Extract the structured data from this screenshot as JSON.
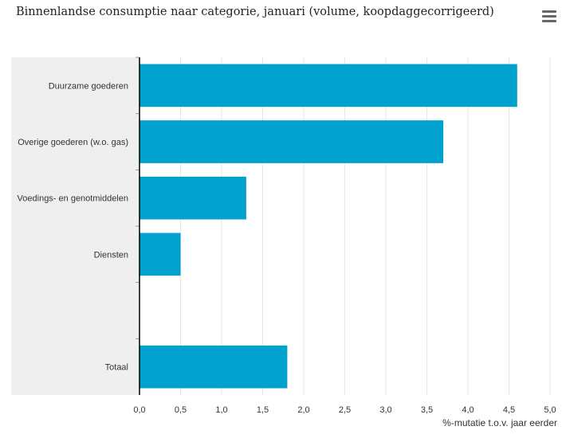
{
  "title": "Binnenlandse consumptie naar categorie, januari (volume, koopdaggecorrigeerd)",
  "menu": {
    "icon": "hamburger-menu-icon"
  },
  "colors": {
    "bar": "#00a1cd",
    "category_band": "#efefef",
    "gridline": "#e6e6e6",
    "axis": "#000000"
  },
  "chart_data": {
    "type": "bar",
    "orientation": "horizontal",
    "categories": [
      "Duurzame goederen",
      "Overige goederen (w.o. gas)",
      "Voedings- en genotmiddelen",
      "Diensten",
      "",
      "Totaal"
    ],
    "values": [
      4.6,
      3.7,
      1.3,
      0.5,
      null,
      1.8
    ],
    "xlabel": "%-mutatie t.o.v. jaar eerder",
    "ylabel": "",
    "xlim": [
      0,
      5
    ],
    "ticks": [
      "0,0",
      "0,5",
      "1,0",
      "1,5",
      "2,0",
      "2,5",
      "3,0",
      "3,5",
      "4,0",
      "4,5",
      "5,0"
    ],
    "grid": true
  }
}
